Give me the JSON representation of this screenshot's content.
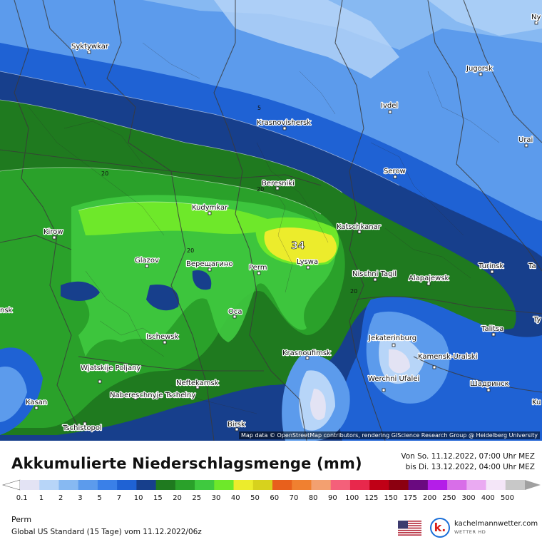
{
  "map": {
    "attribution": "Map data © OpenStreetMap contributors, rendering GIScience Research Group @ Heidelberg University",
    "cities": [
      {
        "name": "Syktywkar"
      },
      {
        "name": "Jugorsk"
      },
      {
        "name": "Ivdel"
      },
      {
        "name": "Krasnovishersk"
      },
      {
        "name": "Urai"
      },
      {
        "name": "Serow"
      },
      {
        "name": "Beresniki"
      },
      {
        "name": "Kudymkar"
      },
      {
        "name": "Kirow"
      },
      {
        "name": "Katschkanar"
      },
      {
        "name": "Glazov"
      },
      {
        "name": "Верещагино"
      },
      {
        "name": "Perm"
      },
      {
        "name": "Lyswa"
      },
      {
        "name": "Nischni Tagil"
      },
      {
        "name": "Turinsk"
      },
      {
        "name": "Alapajewsk"
      },
      {
        "name": "Oca"
      },
      {
        "name": "Talitsa"
      },
      {
        "name": "Ischewsk"
      },
      {
        "name": "Jekaterinburg"
      },
      {
        "name": "Krasnoufimsk"
      },
      {
        "name": "Kamensk-Uralski"
      },
      {
        "name": "Wjatskije Poljany"
      },
      {
        "name": "Neftekamsk"
      },
      {
        "name": "Werchni Ufalei"
      },
      {
        "name": "Шадринск"
      },
      {
        "name": "Nabereschnyje Tschelny"
      },
      {
        "name": "Kasan"
      },
      {
        "name": "Birsk"
      },
      {
        "name": "Tschistopol"
      },
      {
        "name": "Ny"
      },
      {
        "name": "Ta"
      },
      {
        "name": "nsk"
      },
      {
        "name": "Ty"
      },
      {
        "name": "Ku"
      }
    ],
    "contour_labels": [
      "5",
      "20",
      "20",
      "20",
      "20",
      "34"
    ]
  },
  "footer": {
    "title": "Akkumulierte Niederschlagsmenge (mm)",
    "period_from": "Von So. 11.12.2022, 07:00 Uhr MEZ",
    "period_to": "bis Di. 13.12.2022, 04:00 Uhr MEZ",
    "location": "Perm",
    "model": "Global US Standard (15 Tage) vom  11.12.2022/06z",
    "brand_name": "kachelmannwetter.com",
    "brand_sub": "WETTER HD",
    "brand_logo": "k."
  },
  "legend": {
    "values": [
      "0.1",
      "1",
      "2",
      "3",
      "5",
      "7",
      "10",
      "15",
      "20",
      "25",
      "30",
      "40",
      "50",
      "60",
      "70",
      "80",
      "90",
      "100",
      "125",
      "150",
      "175",
      "200",
      "250",
      "300",
      "400",
      "500"
    ],
    "colors": [
      "#e3e3f4",
      "#b7d5f8",
      "#87b9f2",
      "#5c9bec",
      "#3a80e8",
      "#1f62d4",
      "#173f8c",
      "#1f7a1f",
      "#2aa12a",
      "#3fc93f",
      "#6ee82a",
      "#ecec2c",
      "#d7d21d",
      "#e8601c",
      "#f08030",
      "#f3a070",
      "#f4607a",
      "#e8284c",
      "#c00016",
      "#8c0010",
      "#6a0a80",
      "#b41ee8",
      "#d86ee8",
      "#eaaaf2",
      "#f4e6f8",
      "#c8c8c8"
    ]
  },
  "colors": {
    "level1": "#3a80e8",
    "level2": "#1f62d4",
    "level3": "#173f8c",
    "level4": "#1f7a1f",
    "level5": "#2aa12a",
    "level6": "#3fc93f",
    "level7": "#6ee82a",
    "level8": "#ecec2c",
    "lightblue": "#87b9f2",
    "paleblue": "#b7d5f8",
    "pale": "#e3e3f4"
  }
}
